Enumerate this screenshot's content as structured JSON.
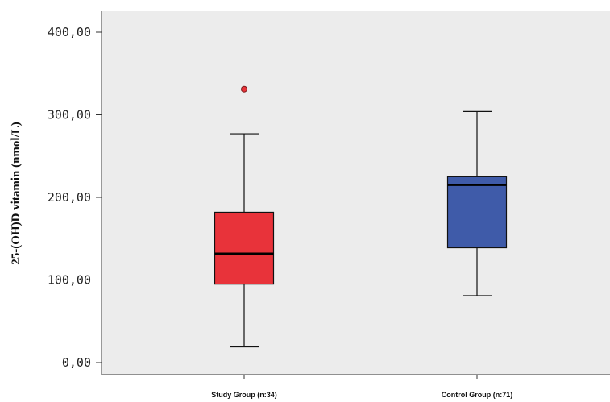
{
  "chart_data": {
    "type": "boxplot",
    "title": "",
    "xlabel": "",
    "ylabel": "25-(OH)D vitamin (nmol/L)",
    "ylim": [
      -15,
      410
    ],
    "y_ticks": [
      0,
      100,
      200,
      300,
      400
    ],
    "y_tick_labels": [
      "0,00",
      "100,00",
      "200,00",
      "300,00",
      "400,00"
    ],
    "grid": false,
    "plot_background": "#ececec",
    "categories": [
      "Study Group (n:34)",
      "Control Group (n:71)"
    ],
    "boxes": [
      {
        "label": "Study Group (n:34)",
        "color": "#e8333a",
        "whisker_low": 19,
        "q1": 95,
        "median": 132,
        "q3": 182,
        "whisker_high": 277,
        "outliers": [
          331
        ]
      },
      {
        "label": "Control Group (n:71)",
        "color": "#3f5ba9",
        "whisker_low": 81,
        "q1": 139,
        "median": 215,
        "q3": 225,
        "whisker_high": 304,
        "outliers": []
      }
    ]
  }
}
